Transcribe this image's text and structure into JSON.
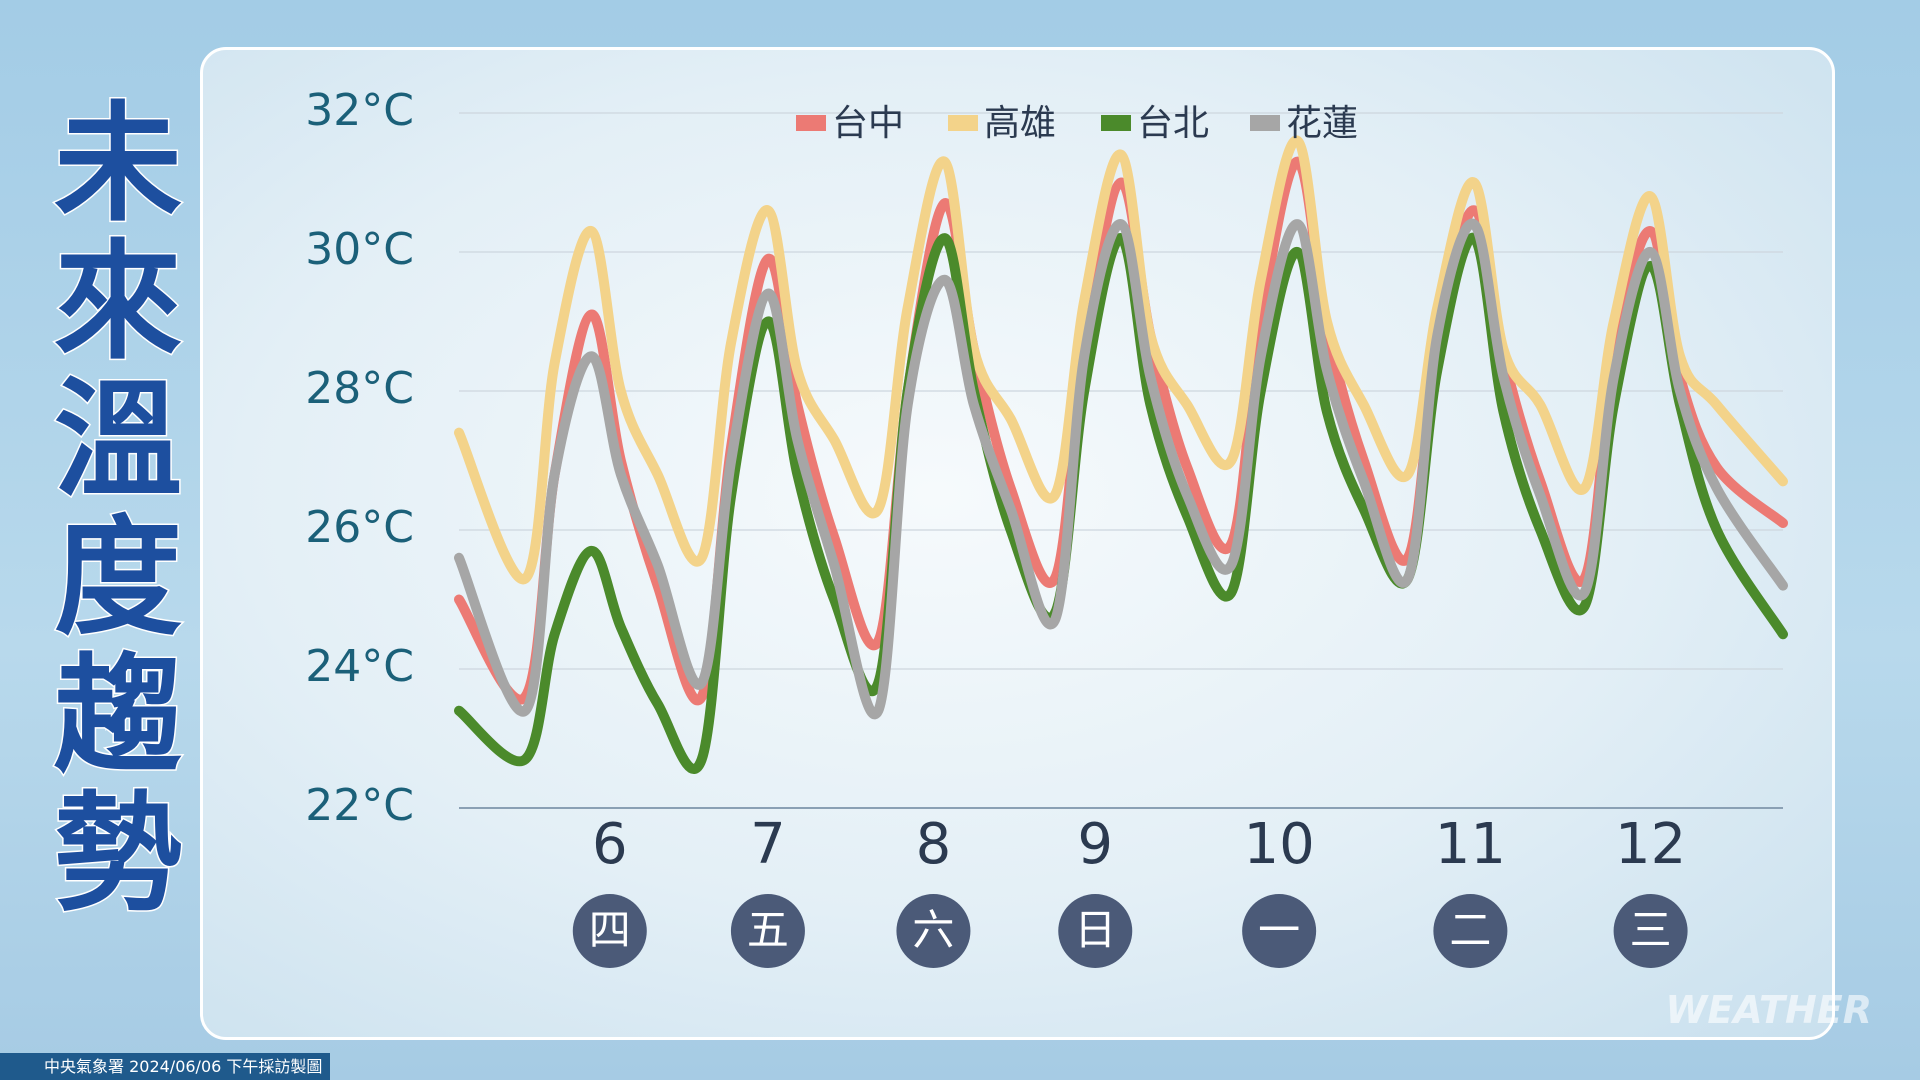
{
  "chart_data": {
    "type": "line",
    "title": "未來溫度趨勢",
    "source": "中央氣象署 2024/06/06 下午採訪製圖",
    "watermark": "WEATHER",
    "legend": "top",
    "grid": true,
    "xlim": [
      0,
      180
    ],
    "xticks": [
      {
        "value": 20.5,
        "label": "6"
      },
      {
        "value": 42,
        "label": "7"
      },
      {
        "value": 64.5,
        "label": "8"
      },
      {
        "value": 86.5,
        "label": "9"
      },
      {
        "value": 111.5,
        "label": "10"
      },
      {
        "value": 137.5,
        "label": "11"
      },
      {
        "value": 162,
        "label": "12"
      }
    ],
    "weekday_labels": [
      "四",
      "五",
      "六",
      "日",
      "一",
      "二",
      "三"
    ],
    "ylim": [
      22,
      32
    ],
    "yticks": [
      {
        "value": 22,
        "label": "22°C"
      },
      {
        "value": 24,
        "label": "24°C"
      },
      {
        "value": 26,
        "label": "26°C"
      },
      {
        "value": 28,
        "label": "28°C"
      },
      {
        "value": 30,
        "label": "30°C"
      },
      {
        "value": 32,
        "label": "32°C"
      }
    ],
    "x": [
      0,
      9,
      13,
      18,
      22,
      27,
      33,
      37,
      42,
      46,
      51,
      57,
      61,
      66,
      70,
      75,
      81,
      85,
      90,
      94,
      99,
      105,
      109,
      114,
      118,
      123,
      129,
      133,
      138,
      142,
      147,
      153,
      157,
      162,
      166,
      171,
      180
    ],
    "series": [
      {
        "name": "台中",
        "color": "#ec7a74",
        "values": [
          25.0,
          23.6,
          26.8,
          29.1,
          27.0,
          25.2,
          23.6,
          27.2,
          29.9,
          27.8,
          25.9,
          24.4,
          28.0,
          30.7,
          28.6,
          26.6,
          25.3,
          28.6,
          31.0,
          28.8,
          26.9,
          25.8,
          29.0,
          31.3,
          28.9,
          27.0,
          25.6,
          28.7,
          30.6,
          28.5,
          26.7,
          25.3,
          28.5,
          30.3,
          28.2,
          26.9,
          26.1
        ]
      },
      {
        "name": "高雄",
        "color": "#f3d38a",
        "values": [
          27.4,
          25.3,
          28.4,
          30.3,
          28.0,
          26.8,
          25.6,
          28.7,
          30.6,
          28.3,
          27.3,
          26.3,
          29.2,
          31.3,
          28.6,
          27.6,
          26.5,
          29.3,
          31.4,
          28.8,
          27.8,
          27.0,
          29.6,
          31.6,
          29.0,
          27.8,
          26.8,
          29.2,
          31.0,
          28.6,
          27.8,
          26.6,
          29.0,
          30.8,
          28.5,
          27.8,
          26.7
        ]
      },
      {
        "name": "台北",
        "color": "#4b8a2b",
        "values": [
          23.4,
          22.7,
          24.5,
          25.7,
          24.6,
          23.5,
          22.7,
          26.5,
          29.0,
          26.8,
          25.0,
          23.8,
          28.0,
          30.2,
          28.0,
          26.0,
          24.8,
          28.0,
          30.2,
          27.8,
          26.2,
          25.1,
          28.0,
          30.0,
          27.7,
          26.3,
          25.3,
          28.3,
          30.2,
          27.7,
          26.0,
          24.9,
          27.8,
          29.8,
          27.8,
          26.0,
          24.5
        ]
      },
      {
        "name": "花蓮",
        "color": "#a6a6a6",
        "values": [
          25.6,
          23.4,
          26.8,
          28.5,
          26.8,
          25.5,
          23.8,
          27.0,
          29.4,
          27.3,
          25.5,
          23.4,
          27.8,
          29.6,
          27.8,
          26.3,
          24.7,
          28.5,
          30.4,
          28.2,
          26.5,
          25.5,
          28.5,
          30.4,
          28.3,
          26.7,
          25.3,
          28.8,
          30.4,
          28.2,
          26.5,
          25.1,
          28.2,
          30.0,
          28.0,
          26.6,
          25.2
        ]
      }
    ]
  }
}
